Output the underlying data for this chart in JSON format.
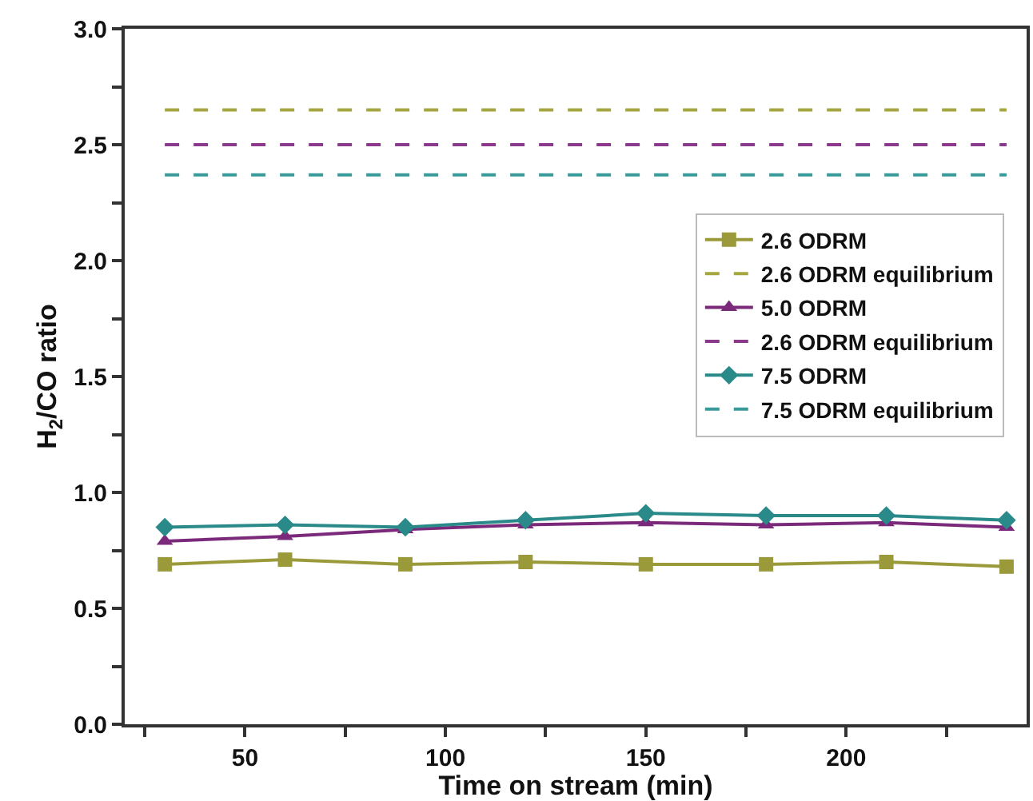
{
  "chart_data": {
    "type": "line",
    "xlabel": "Time on stream (min)",
    "ylabel": "H$_{2}$/CO ratio",
    "x": [
      30,
      60,
      90,
      120,
      150,
      180,
      210,
      240
    ],
    "xlim": [
      20,
      245
    ],
    "xticks": [
      {
        "value": 25,
        "label": null
      },
      50,
      {
        "value": 75,
        "label": null
      },
      100,
      {
        "value": 125,
        "label": null
      },
      150,
      {
        "value": 175,
        "label": null
      },
      200,
      {
        "value": 225,
        "label": null
      }
    ],
    "ylim": [
      0,
      3
    ],
    "yticks": [
      "0.0",
      {
        "value": 0.25,
        "label": null
      },
      {
        "value": 0.5,
        "label": "0.5"
      },
      {
        "value": 0.75,
        "label": null
      },
      {
        "value": 1,
        "label": "1.0"
      },
      {
        "value": 1.25,
        "label": null
      },
      {
        "value": 1.5,
        "label": "1.5"
      },
      {
        "value": 1.75,
        "label": null
      },
      {
        "value": 2,
        "label": "2.0"
      },
      {
        "value": 2.25,
        "label": null
      },
      {
        "value": 2.5,
        "label": "2.5"
      },
      {
        "value": 2.75,
        "label": null
      },
      {
        "value": 3,
        "label": "3.0"
      }
    ],
    "grid": false,
    "legend": "right",
    "series": [
      {
        "name": "2.6 ODRM",
        "color": "#9a9a3a",
        "marker": "square",
        "line_style": "solid",
        "values": [
          0.69,
          0.71,
          0.69,
          0.7,
          0.69,
          0.69,
          0.7,
          0.68
        ]
      },
      {
        "name": "2.6 ODRM equilibrium",
        "color": "#a6a640",
        "marker": "none",
        "line_style": "dashed",
        "values": [
          2.65,
          2.65,
          2.65,
          2.65,
          2.65,
          2.65,
          2.65,
          2.65
        ]
      },
      {
        "name": "5.0 ODRM",
        "color": "#7b2a7b",
        "marker": "triangle",
        "line_style": "solid",
        "values": [
          0.79,
          0.81,
          0.84,
          0.86,
          0.87,
          0.86,
          0.87,
          0.85
        ]
      },
      {
        "name": "2.6 ODRM equilibrium",
        "color": "#8b3a8b",
        "marker": "none",
        "line_style": "dashed",
        "values": [
          2.5,
          2.5,
          2.5,
          2.5,
          2.5,
          2.5,
          2.5,
          2.5
        ]
      },
      {
        "name": "7.5 ODRM",
        "color": "#2a8a8a",
        "marker": "diamond",
        "line_style": "solid",
        "values": [
          0.85,
          0.86,
          0.85,
          0.88,
          0.91,
          0.9,
          0.9,
          0.88
        ]
      },
      {
        "name": "7.5 ODRM equilibrium",
        "color": "#3a9a9a",
        "marker": "none",
        "line_style": "dashed",
        "values": [
          2.37,
          2.37,
          2.37,
          2.37,
          2.37,
          2.37,
          2.37,
          2.37
        ]
      }
    ]
  }
}
